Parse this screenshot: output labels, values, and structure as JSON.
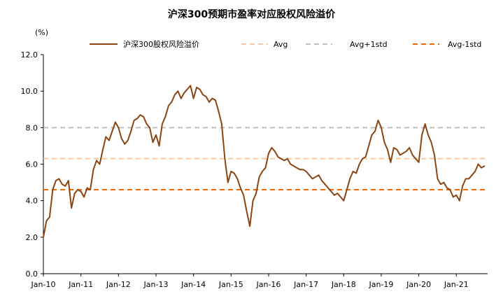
{
  "chart_data": {
    "type": "line",
    "title": "沪深300预期市盈率对应股权风险溢价",
    "ylabel": "(%)",
    "ylim": [
      0,
      12
    ],
    "yticks": [
      "0.0",
      "2.0",
      "4.0",
      "6.0",
      "8.0",
      "10.0",
      "12.0"
    ],
    "xlim": [
      "2010-01",
      "2021-11"
    ],
    "xticks": [
      "Jan-10",
      "Jan-11",
      "Jan-12",
      "Jan-13",
      "Jan-14",
      "Jan-15",
      "Jan-16",
      "Jan-17",
      "Jan-18",
      "Jan-19",
      "Jan-20",
      "Jan-21"
    ],
    "grid": false,
    "legend_position": "top",
    "series": [
      {
        "name": "沪深300股权风险溢价",
        "color": "#8B4513",
        "style": "solid",
        "x": [
          "2010-01",
          "2010-02",
          "2010-03",
          "2010-04",
          "2010-05",
          "2010-06",
          "2010-07",
          "2010-08",
          "2010-09",
          "2010-10",
          "2010-11",
          "2010-12",
          "2011-01",
          "2011-02",
          "2011-03",
          "2011-04",
          "2011-05",
          "2011-06",
          "2011-07",
          "2011-08",
          "2011-09",
          "2011-10",
          "2011-11",
          "2011-12",
          "2012-01",
          "2012-02",
          "2012-03",
          "2012-04",
          "2012-05",
          "2012-06",
          "2012-07",
          "2012-08",
          "2012-09",
          "2012-10",
          "2012-11",
          "2012-12",
          "2013-01",
          "2013-02",
          "2013-03",
          "2013-04",
          "2013-05",
          "2013-06",
          "2013-07",
          "2013-08",
          "2013-09",
          "2013-10",
          "2013-11",
          "2013-12",
          "2014-01",
          "2014-02",
          "2014-03",
          "2014-04",
          "2014-05",
          "2014-06",
          "2014-07",
          "2014-08",
          "2014-09",
          "2014-10",
          "2014-11",
          "2014-12",
          "2015-01",
          "2015-02",
          "2015-03",
          "2015-04",
          "2015-05",
          "2015-06",
          "2015-07",
          "2015-08",
          "2015-09",
          "2015-10",
          "2015-11",
          "2015-12",
          "2016-01",
          "2016-02",
          "2016-03",
          "2016-04",
          "2016-05",
          "2016-06",
          "2016-07",
          "2016-08",
          "2016-09",
          "2016-10",
          "2016-11",
          "2016-12",
          "2017-01",
          "2017-02",
          "2017-03",
          "2017-04",
          "2017-05",
          "2017-06",
          "2017-07",
          "2017-08",
          "2017-09",
          "2017-10",
          "2017-11",
          "2017-12",
          "2018-01",
          "2018-02",
          "2018-03",
          "2018-04",
          "2018-05",
          "2018-06",
          "2018-07",
          "2018-08",
          "2018-09",
          "2018-10",
          "2018-11",
          "2018-12",
          "2019-01",
          "2019-02",
          "2019-03",
          "2019-04",
          "2019-05",
          "2019-06",
          "2019-07",
          "2019-08",
          "2019-09",
          "2019-10",
          "2019-11",
          "2019-12",
          "2020-01",
          "2020-02",
          "2020-03",
          "2020-04",
          "2020-05",
          "2020-06",
          "2020-07",
          "2020-08",
          "2020-09",
          "2020-10",
          "2020-11",
          "2020-12",
          "2021-01",
          "2021-02",
          "2021-03",
          "2021-04",
          "2021-05",
          "2021-06",
          "2021-07",
          "2021-08",
          "2021-09",
          "2021-10"
        ],
        "values": [
          2.0,
          2.9,
          3.1,
          4.6,
          5.1,
          5.2,
          4.9,
          4.8,
          5.1,
          3.6,
          4.4,
          4.6,
          4.5,
          4.2,
          4.7,
          4.6,
          5.7,
          6.2,
          6.0,
          6.8,
          7.5,
          7.3,
          7.8,
          8.3,
          8.0,
          7.4,
          7.1,
          7.3,
          7.8,
          8.4,
          8.5,
          8.7,
          8.6,
          8.2,
          8.0,
          7.2,
          7.6,
          7.0,
          8.2,
          8.6,
          9.2,
          9.4,
          9.8,
          10.0,
          9.6,
          9.9,
          10.1,
          10.3,
          9.6,
          10.2,
          10.1,
          9.8,
          9.7,
          9.4,
          9.6,
          9.5,
          8.9,
          8.2,
          6.3,
          5.0,
          5.6,
          5.5,
          5.2,
          4.7,
          4.3,
          3.4,
          2.6,
          4.0,
          4.4,
          5.3,
          5.6,
          5.8,
          6.6,
          6.9,
          6.7,
          6.4,
          6.3,
          6.2,
          6.3,
          6.0,
          5.9,
          5.8,
          5.7,
          5.7,
          5.6,
          5.4,
          5.2,
          5.3,
          5.4,
          5.1,
          4.9,
          4.7,
          4.5,
          4.3,
          4.4,
          4.2,
          4.0,
          4.6,
          5.2,
          5.6,
          5.5,
          6.0,
          6.3,
          6.4,
          7.0,
          7.6,
          7.8,
          8.4,
          8.0,
          7.2,
          6.8,
          6.1,
          6.9,
          6.8,
          6.5,
          6.6,
          6.7,
          6.9,
          6.5,
          6.3,
          6.1,
          7.6,
          8.2,
          7.6,
          7.2,
          6.5,
          5.2,
          4.9,
          5.0,
          4.7,
          4.6,
          4.2,
          4.3,
          4.0,
          4.8,
          5.2,
          5.2,
          5.4,
          5.6,
          6.0,
          5.8,
          5.9
        ]
      },
      {
        "name": "Avg",
        "color": "#F4C7A1",
        "style": "dashed",
        "value": 6.3
      },
      {
        "name": "Avg+1std",
        "color": "#BFBFBF",
        "style": "dashed",
        "value": 8.0
      },
      {
        "name": "Avg-1std",
        "color": "#E36C0A",
        "style": "dashed",
        "value": 4.6
      }
    ]
  }
}
